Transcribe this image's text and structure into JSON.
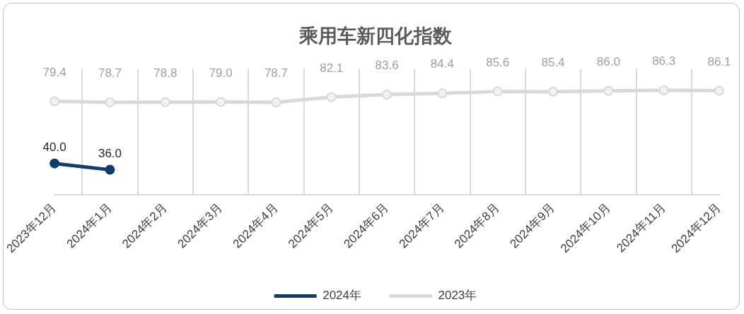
{
  "chart_data": {
    "type": "line",
    "title": "乘用车新四化指数",
    "categories": [
      "2023年12月",
      "2024年1月",
      "2024年2月",
      "2024年3月",
      "2024年4月",
      "2024年5月",
      "2024年6月",
      "2024年7月",
      "2024年8月",
      "2024年9月",
      "2024年10月",
      "2024年11月",
      "2024年12月"
    ],
    "series": [
      {
        "name": "2024年",
        "color": "#0f3d6e",
        "values": [
          40.0,
          36.0,
          null,
          null,
          null,
          null,
          null,
          null,
          null,
          null,
          null,
          null,
          null
        ],
        "value_labels": [
          "40.0",
          "36.0",
          null,
          null,
          null,
          null,
          null,
          null,
          null,
          null,
          null,
          null,
          null
        ]
      },
      {
        "name": "2023年",
        "color": "#d9d9d9",
        "values": [
          79.4,
          78.7,
          78.8,
          79.0,
          78.7,
          82.1,
          83.6,
          84.4,
          85.6,
          85.4,
          86.0,
          86.3,
          86.1
        ],
        "value_labels": [
          "79.4",
          "78.7",
          "78.8",
          "79.0",
          "78.7",
          "82.1",
          "83.6",
          "84.4",
          "85.6",
          "85.4",
          "86.0",
          "86.3",
          "86.1"
        ]
      }
    ],
    "ylim": [
      20,
      100
    ],
    "tick_labels": "x",
    "grid": "x",
    "legend": "bottom",
    "marker": "circle",
    "line_style": "solid"
  }
}
